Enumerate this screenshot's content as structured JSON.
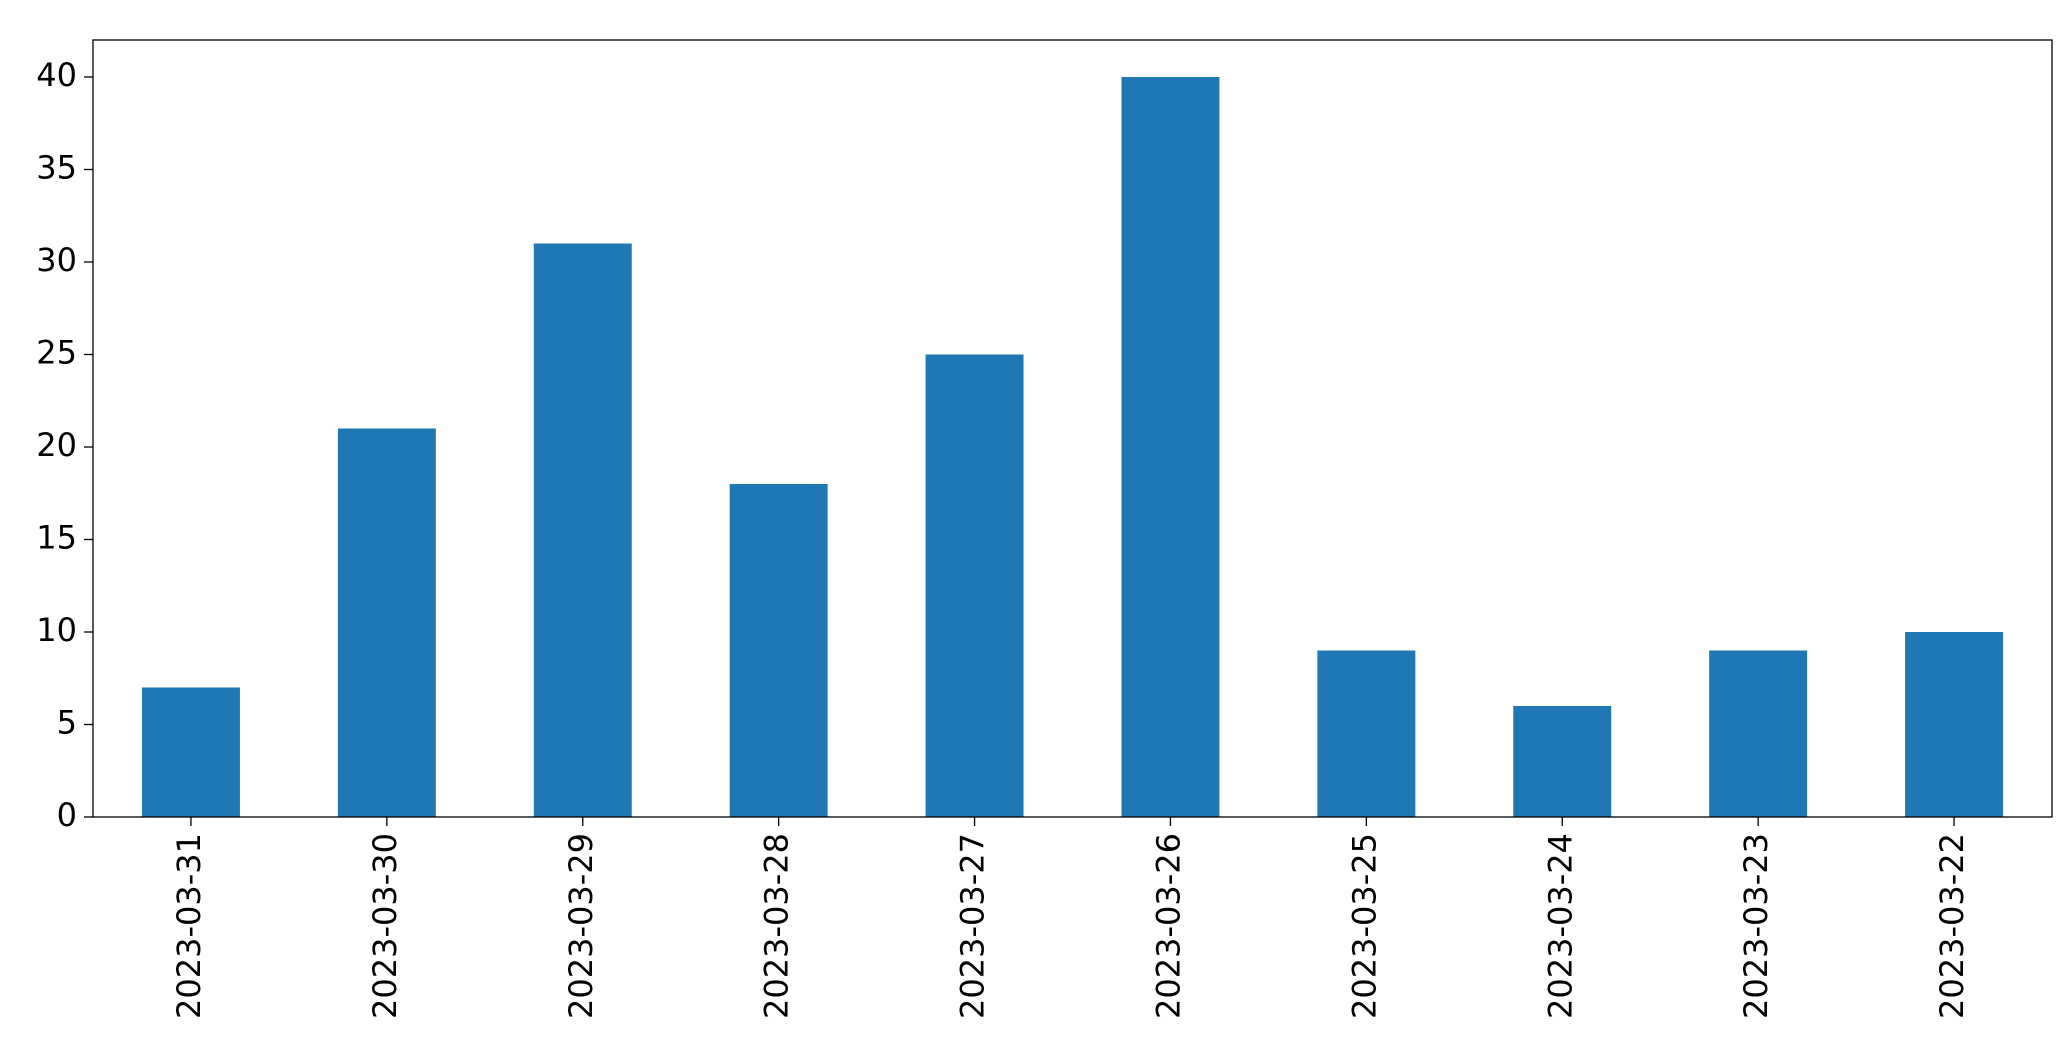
{
  "chart_data": {
    "type": "bar",
    "categories": [
      "2023-03-31",
      "2023-03-30",
      "2023-03-29",
      "2023-03-28",
      "2023-03-27",
      "2023-03-26",
      "2023-03-25",
      "2023-03-24",
      "2023-03-23",
      "2023-03-22"
    ],
    "values": [
      7,
      21,
      31,
      18,
      25,
      40,
      9,
      6,
      9,
      10
    ],
    "color": "#1f77b4",
    "ylim": [
      0,
      42
    ],
    "yticks": [
      0,
      5,
      10,
      15,
      20,
      25,
      30,
      35,
      40
    ],
    "grid": false
  }
}
